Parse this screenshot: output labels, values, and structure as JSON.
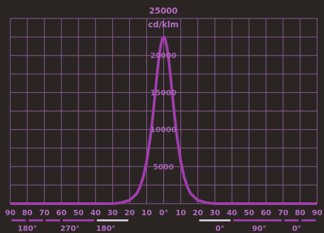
{
  "colors": {
    "background": "#2a2522",
    "grid": "#8f5a9e",
    "curve": "#a13dae",
    "text": "#b46cc3",
    "secondary": "#d0c4d2"
  },
  "chart_data": {
    "type": "line",
    "title": "25000",
    "ylabel": "cd/klm",
    "xlim": [
      -90,
      90
    ],
    "ylim": [
      0,
      25000
    ],
    "y_tick_labels": [
      "20000",
      "15000",
      "10000",
      "5000"
    ],
    "y_tick_values": [
      20000,
      15000,
      10000,
      5000
    ],
    "x_tick_labels": [
      "90",
      "80",
      "70",
      "60",
      "50",
      "40",
      "30",
      "20",
      "10",
      "0°",
      "10",
      "20",
      "30",
      "40",
      "50",
      "60",
      "70",
      "80",
      "90"
    ],
    "x_tick_values": [
      -90,
      -80,
      -70,
      -60,
      -50,
      -40,
      -30,
      -20,
      -10,
      0,
      10,
      20,
      30,
      40,
      50,
      60,
      70,
      80,
      90
    ],
    "c_plane_labels": [
      {
        "text": "180°",
        "at": -80
      },
      {
        "text": "270°",
        "at": -55
      },
      {
        "text": "180°",
        "at": -34
      },
      {
        "text": "0°",
        "at": 33
      },
      {
        "text": "90°",
        "at": 56
      },
      {
        "text": "0°",
        "at": 78
      }
    ],
    "series": [
      {
        "x": [
          -90,
          -40,
          -30,
          -25,
          -20,
          -16,
          -14,
          -12,
          -10,
          -8,
          -7,
          -6,
          -5,
          -4,
          -3,
          -2,
          -1,
          0,
          1,
          2,
          3,
          4,
          5,
          6,
          7,
          8,
          10,
          12,
          14,
          16,
          20,
          25,
          30,
          40,
          90
        ],
        "values": [
          0,
          0,
          0,
          120,
          450,
          1300,
          2200,
          3600,
          5700,
          8700,
          10500,
          12600,
          14900,
          17200,
          19300,
          21000,
          22100,
          22500,
          22100,
          21000,
          19300,
          17200,
          14900,
          12600,
          10500,
          8700,
          5700,
          3600,
          2200,
          1300,
          450,
          120,
          0,
          0,
          0
        ]
      }
    ]
  }
}
